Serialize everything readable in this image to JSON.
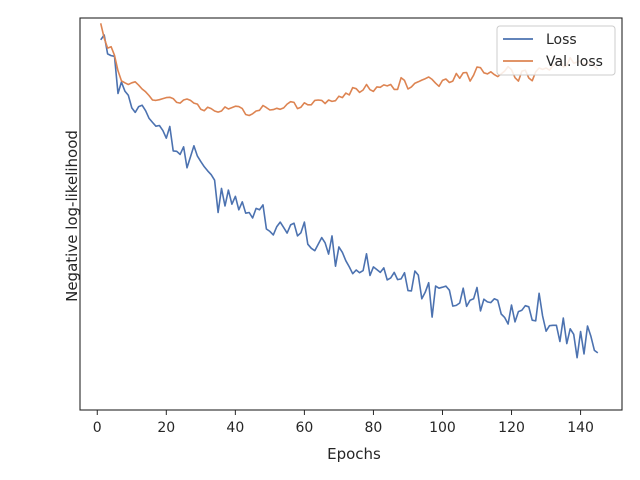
{
  "chart_data": {
    "type": "line",
    "xlabel": "Epochs",
    "ylabel": "Negative log-likelihood",
    "xlim": [
      -5,
      152
    ],
    "ylim": [
      0,
      1
    ],
    "xticks": [
      0,
      20,
      40,
      60,
      80,
      100,
      120,
      140
    ],
    "grid": false,
    "legend_position": "top-right",
    "series": [
      {
        "name": "Loss",
        "color": "#4c72b0",
        "x": [
          1,
          2,
          3,
          4,
          5,
          6,
          7,
          8,
          9,
          10,
          11,
          12,
          13,
          14,
          15,
          16,
          17,
          18,
          19,
          20,
          21,
          22,
          23,
          24,
          25,
          26,
          27,
          28,
          29,
          30,
          31,
          32,
          33,
          34,
          35,
          36,
          37,
          38,
          39,
          40,
          41,
          42,
          43,
          44,
          45,
          46,
          47,
          48,
          49,
          50,
          51,
          52,
          53,
          54,
          55,
          56,
          57,
          58,
          59,
          60,
          61,
          62,
          63,
          64,
          65,
          66,
          67,
          68,
          69,
          70,
          71,
          72,
          73,
          74,
          75,
          76,
          77,
          78,
          79,
          80,
          81,
          82,
          83,
          84,
          85,
          86,
          87,
          88,
          89,
          90,
          91,
          92,
          93,
          94,
          95,
          96,
          97,
          98,
          99,
          100,
          101,
          102,
          103,
          104,
          105,
          106,
          107,
          108,
          109,
          110,
          111,
          112,
          113,
          114,
          115,
          116,
          117,
          118,
          119,
          120,
          121,
          122,
          123,
          124,
          125,
          126,
          127,
          128,
          129,
          130,
          131,
          132,
          133,
          134,
          135,
          136,
          137,
          138,
          139,
          140,
          141,
          142,
          143,
          144,
          145
        ],
        "values": [
          0.986,
          1.0,
          0.945,
          0.94,
          0.938,
          0.83,
          0.863,
          0.837,
          0.825,
          0.788,
          0.775,
          0.792,
          0.796,
          0.78,
          0.758,
          0.746,
          0.735,
          0.737,
          0.722,
          0.7,
          0.734,
          0.663,
          0.662,
          0.653,
          0.675,
          0.614,
          0.646,
          0.678,
          0.648,
          0.632,
          0.617,
          0.605,
          0.594,
          0.578,
          0.484,
          0.554,
          0.503,
          0.549,
          0.508,
          0.531,
          0.492,
          0.515,
          0.482,
          0.484,
          0.468,
          0.496,
          0.492,
          0.506,
          0.436,
          0.429,
          0.419,
          0.443,
          0.456,
          0.44,
          0.424,
          0.448,
          0.453,
          0.416,
          0.425,
          0.456,
          0.392,
          0.38,
          0.373,
          0.392,
          0.411,
          0.396,
          0.363,
          0.416,
          0.328,
          0.384,
          0.368,
          0.344,
          0.326,
          0.306,
          0.317,
          0.309,
          0.315,
          0.364,
          0.301,
          0.326,
          0.318,
          0.31,
          0.323,
          0.288,
          0.294,
          0.31,
          0.289,
          0.291,
          0.309,
          0.257,
          0.256,
          0.314,
          0.302,
          0.233,
          0.252,
          0.28,
          0.18,
          0.27,
          0.264,
          0.267,
          0.27,
          0.258,
          0.212,
          0.214,
          0.221,
          0.264,
          0.211,
          0.229,
          0.233,
          0.266,
          0.198,
          0.232,
          0.224,
          0.222,
          0.233,
          0.229,
          0.189,
          0.179,
          0.16,
          0.215,
          0.166,
          0.196,
          0.2,
          0.213,
          0.21,
          0.171,
          0.169,
          0.249,
          0.183,
          0.139,
          0.155,
          0.156,
          0.156,
          0.109,
          0.177,
          0.103,
          0.146,
          0.13,
          0.062,
          0.138,
          0.073,
          0.154,
          0.124,
          0.083,
          0.076
        ]
      },
      {
        "name": "Val. loss",
        "color": "#dd8452",
        "x": [
          1,
          2,
          3,
          4,
          5,
          6,
          7,
          8,
          9,
          10,
          11,
          12,
          13,
          14,
          15,
          16,
          17,
          18,
          19,
          20,
          21,
          22,
          23,
          24,
          25,
          26,
          27,
          28,
          29,
          30,
          31,
          32,
          33,
          34,
          35,
          36,
          37,
          38,
          39,
          40,
          41,
          42,
          43,
          44,
          45,
          46,
          47,
          48,
          49,
          50,
          51,
          52,
          53,
          54,
          55,
          56,
          57,
          58,
          59,
          60,
          61,
          62,
          63,
          64,
          65,
          66,
          67,
          68,
          69,
          70,
          71,
          72,
          73,
          74,
          75,
          76,
          77,
          78,
          79,
          80,
          81,
          82,
          83,
          84,
          85,
          86,
          87,
          88,
          89,
          90,
          91,
          92,
          93,
          94,
          95,
          96,
          97,
          98,
          99,
          100,
          101,
          102,
          103,
          104,
          105,
          106,
          107,
          108,
          109,
          110,
          111,
          112,
          113,
          114,
          115,
          116,
          117,
          118,
          119,
          120,
          121,
          122,
          123,
          124,
          125,
          126,
          127,
          128,
          129,
          130,
          131,
          132,
          133,
          134,
          135,
          136,
          137,
          138,
          139,
          140,
          141,
          142,
          143,
          144,
          145
        ],
        "values": [
          1.034,
          0.991,
          0.962,
          0.966,
          0.941,
          0.896,
          0.867,
          0.861,
          0.856,
          0.861,
          0.864,
          0.854,
          0.843,
          0.835,
          0.824,
          0.811,
          0.81,
          0.812,
          0.815,
          0.818,
          0.819,
          0.815,
          0.804,
          0.802,
          0.811,
          0.814,
          0.81,
          0.802,
          0.799,
          0.784,
          0.78,
          0.79,
          0.786,
          0.779,
          0.776,
          0.779,
          0.791,
          0.785,
          0.789,
          0.793,
          0.792,
          0.786,
          0.769,
          0.766,
          0.771,
          0.779,
          0.781,
          0.795,
          0.789,
          0.782,
          0.783,
          0.787,
          0.784,
          0.788,
          0.799,
          0.806,
          0.804,
          0.786,
          0.79,
          0.803,
          0.797,
          0.797,
          0.81,
          0.811,
          0.81,
          0.801,
          0.811,
          0.807,
          0.809,
          0.822,
          0.818,
          0.831,
          0.826,
          0.847,
          0.844,
          0.833,
          0.84,
          0.856,
          0.841,
          0.836,
          0.849,
          0.848,
          0.855,
          0.852,
          0.856,
          0.842,
          0.842,
          0.876,
          0.868,
          0.843,
          0.849,
          0.86,
          0.864,
          0.869,
          0.873,
          0.878,
          0.871,
          0.86,
          0.851,
          0.868,
          0.872,
          0.862,
          0.866,
          0.888,
          0.874,
          0.89,
          0.891,
          0.866,
          0.883,
          0.907,
          0.905,
          0.89,
          0.887,
          0.893,
          0.885,
          0.879,
          0.887,
          0.895,
          0.908,
          0.899,
          0.876,
          0.866,
          0.895,
          0.898,
          0.875,
          0.867,
          0.893,
          0.904,
          0.9,
          0.904,
          0.898,
          0.911,
          0.917,
          0.932,
          0.907,
          0.912,
          0.934,
          0.918,
          0.921,
          0.925,
          0.914,
          0.918,
          0.92,
          0.91,
          0.9
        ]
      }
    ]
  }
}
